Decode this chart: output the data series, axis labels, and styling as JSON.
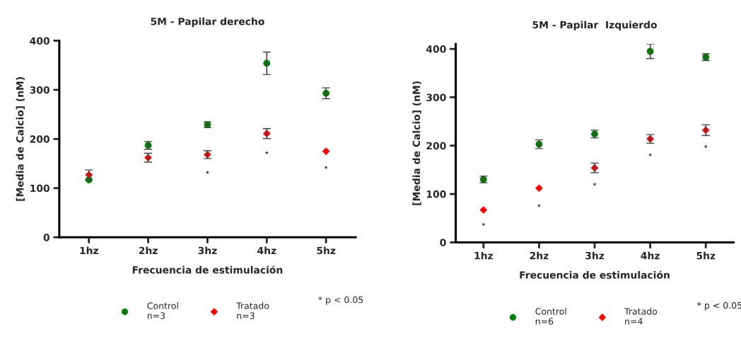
{
  "chart_data": [
    {
      "type": "scatter",
      "title": "5M - Papilar derecho",
      "xlabel": "Frecuencia de estimulación",
      "ylabel": "[Media de Calcio] (nM)",
      "categories": [
        "1hz",
        "2hz",
        "3hz",
        "4hz",
        "5hz"
      ],
      "series": [
        {
          "name": "Control\nn=3",
          "color": "#008000",
          "marker": "circle",
          "values": [
            117,
            187,
            229,
            354,
            293
          ],
          "errors": [
            null,
            8,
            6,
            23,
            11
          ]
        },
        {
          "name": "Tratado\nn=3",
          "color": "#ff0000",
          "marker": "diamond",
          "values": [
            127,
            162,
            168,
            211,
            175
          ],
          "errors": [
            10,
            9,
            8,
            10,
            null
          ]
        },
        {
          "color": "#333333",
          "marker": "star",
          "values": [
            null,
            null,
            132,
            172,
            142
          ]
        }
      ],
      "ylim": [
        0,
        400
      ],
      "yticks": [
        0,
        100,
        200,
        300,
        400
      ],
      "grid": false,
      "legend": "bottom",
      "annotations": [
        "* p < 0.05"
      ]
    },
    {
      "type": "scatter",
      "title": "5M - Papilar  Izquierdo",
      "xlabel": "Frecuencia de estimulación",
      "ylabel": "[Media de Calcio] (nM)",
      "categories": [
        "1hz",
        "2hz",
        "3hz",
        "4hz",
        "5hz"
      ],
      "series": [
        {
          "name": "Control\nn=6",
          "color": "#008000",
          "marker": "circle",
          "values": [
            130,
            203,
            224,
            395,
            383
          ],
          "errors": [
            7,
            9,
            8,
            15,
            7
          ]
        },
        {
          "name": "Tratado\nn=4",
          "color": "#ff0000",
          "marker": "diamond",
          "values": [
            67,
            112,
            154,
            214,
            232
          ],
          "errors": [
            null,
            null,
            10,
            9,
            11
          ]
        },
        {
          "color": "#333333",
          "marker": "star",
          "values": [
            37,
            76,
            120,
            181,
            198
          ]
        }
      ],
      "ylim": [
        0,
        410
      ],
      "yticks": [
        0,
        100,
        200,
        300,
        400
      ],
      "grid": false,
      "legend": "bottom",
      "annotations": [
        "* p < 0.05"
      ]
    }
  ]
}
